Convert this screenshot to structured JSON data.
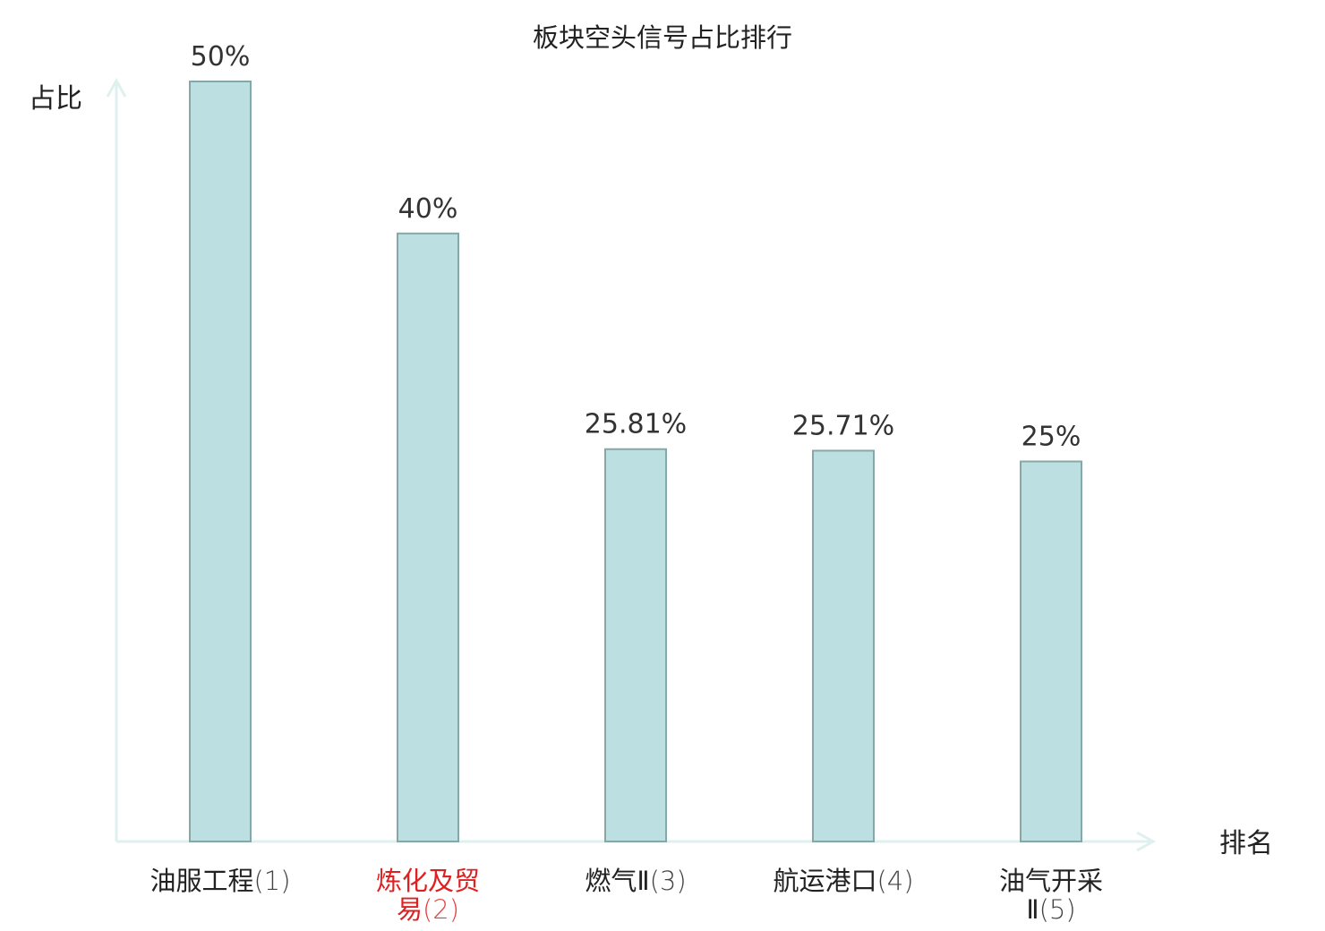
{
  "chart_data": {
    "type": "bar",
    "title": "板块空头信号占比排行",
    "ylabel": "占比",
    "xlabel": "排名",
    "categories": [
      {
        "name": "油服工程",
        "rank": "(1)",
        "highlight": false
      },
      {
        "name": "炼化及贸易",
        "rank": "(2)",
        "highlight": true
      },
      {
        "name": "燃气Ⅱ",
        "rank": "(3)",
        "highlight": false
      },
      {
        "name": "航运港口",
        "rank": "(4)",
        "highlight": false
      },
      {
        "name": "油气开采Ⅱ",
        "rank": "(5)",
        "highlight": false
      }
    ],
    "values": [
      50,
      40,
      25.81,
      25.71,
      25
    ],
    "value_labels": [
      "50%",
      "40%",
      "25.81%",
      "25.71%",
      "25%"
    ],
    "ylim": [
      0,
      50
    ],
    "grid": false,
    "legend": "none"
  },
  "colors": {
    "bar_fill": "#bce0e2",
    "bar_stroke": "#86a7a8",
    "axis": "#dff1ef",
    "text": "#222222",
    "value_text": "#333333",
    "highlight": "#e02020"
  }
}
